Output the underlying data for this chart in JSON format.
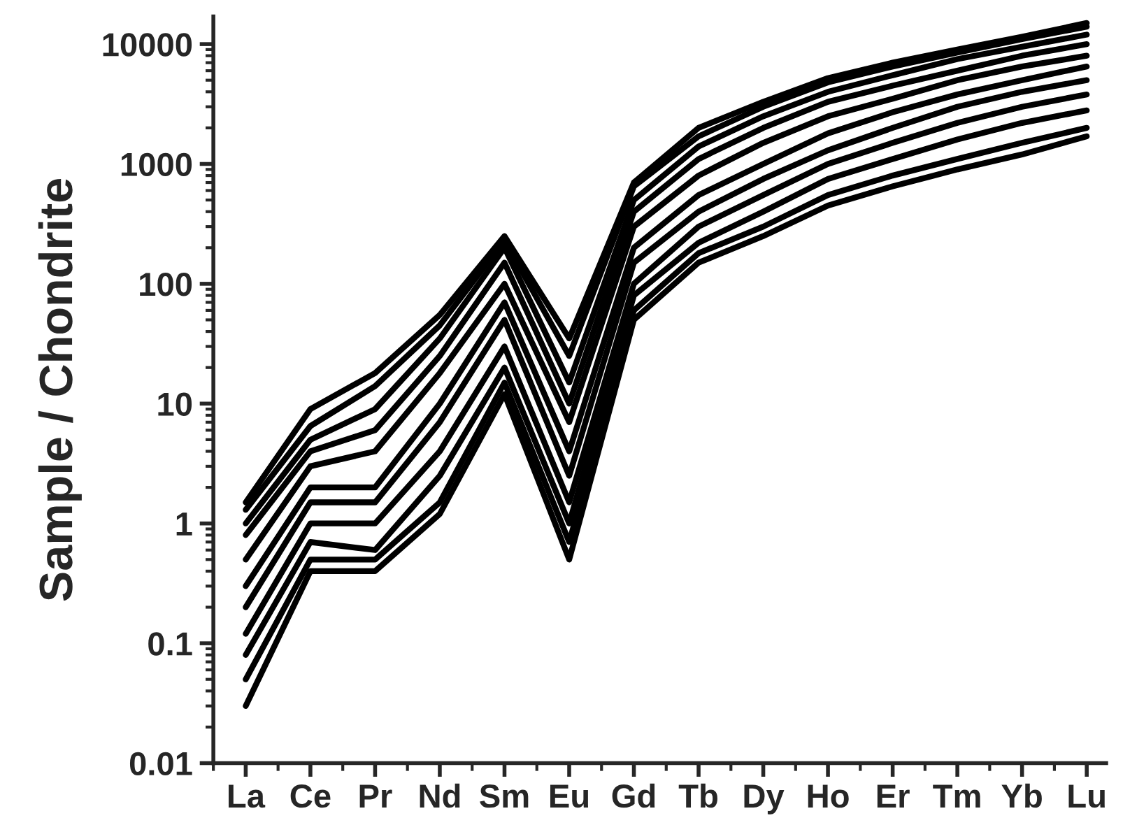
{
  "chart_data": {
    "type": "line",
    "ylabel": "Sample / Chondrite",
    "log": true,
    "categories": [
      "La",
      "Ce",
      "Pr",
      "Nd",
      "Sm",
      "Eu",
      "Gd",
      "Tb",
      "Dy",
      "Ho",
      "Er",
      "Tm",
      "Yb",
      "Lu"
    ],
    "ylim": [
      0.01,
      17000
    ],
    "yticks": [
      0.01,
      0.1,
      1,
      10,
      100,
      1000,
      10000
    ],
    "grid": false,
    "legend": false,
    "marker": "none",
    "line_style": "solid",
    "series": [
      {
        "color": "#000000",
        "values": [
          1.5,
          9,
          18,
          55,
          250,
          35,
          700,
          2000,
          3300,
          5200,
          7000,
          9000,
          11500,
          15000
        ]
      },
      {
        "color": "#000000",
        "values": [
          1.3,
          6.5,
          14,
          45,
          230,
          25,
          650,
          1700,
          3000,
          4800,
          6500,
          8500,
          11000,
          14000
        ]
      },
      {
        "color": "#000000",
        "values": [
          1.0,
          5,
          9,
          35,
          200,
          15,
          500,
          1400,
          2500,
          4000,
          5500,
          7500,
          9500,
          12000
        ]
      },
      {
        "color": "#000000",
        "values": [
          0.8,
          4,
          6,
          25,
          150,
          10,
          400,
          1100,
          2000,
          3300,
          4500,
          6000,
          8000,
          10000
        ]
      },
      {
        "color": "#000000",
        "values": [
          0.5,
          3,
          4,
          18,
          100,
          7,
          300,
          800,
          1500,
          2500,
          3500,
          5000,
          6500,
          8000
        ]
      },
      {
        "color": "#000000",
        "values": [
          0.3,
          2,
          2,
          10,
          70,
          4,
          200,
          550,
          1000,
          1800,
          2700,
          3800,
          5000,
          6500
        ]
      },
      {
        "color": "#000000",
        "values": [
          0.2,
          1.5,
          1.5,
          7,
          50,
          2.5,
          150,
          400,
          750,
          1300,
          2000,
          3000,
          4000,
          5000
        ]
      },
      {
        "color": "#000000",
        "values": [
          0.12,
          1,
          1,
          4,
          30,
          1.5,
          100,
          300,
          550,
          1000,
          1500,
          2200,
          3000,
          3800
        ]
      },
      {
        "color": "#000000",
        "values": [
          0.08,
          0.7,
          0.6,
          2.5,
          20,
          1,
          80,
          220,
          400,
          750,
          1100,
          1600,
          2200,
          2800
        ]
      },
      {
        "color": "#000000",
        "values": [
          0.05,
          0.5,
          0.5,
          1.5,
          15,
          0.7,
          60,
          180,
          300,
          550,
          800,
          1100,
          1500,
          2000
        ]
      },
      {
        "color": "#000000",
        "values": [
          0.03,
          0.4,
          0.4,
          1.2,
          12,
          0.5,
          50,
          150,
          250,
          450,
          650,
          900,
          1200,
          1700
        ]
      }
    ]
  }
}
